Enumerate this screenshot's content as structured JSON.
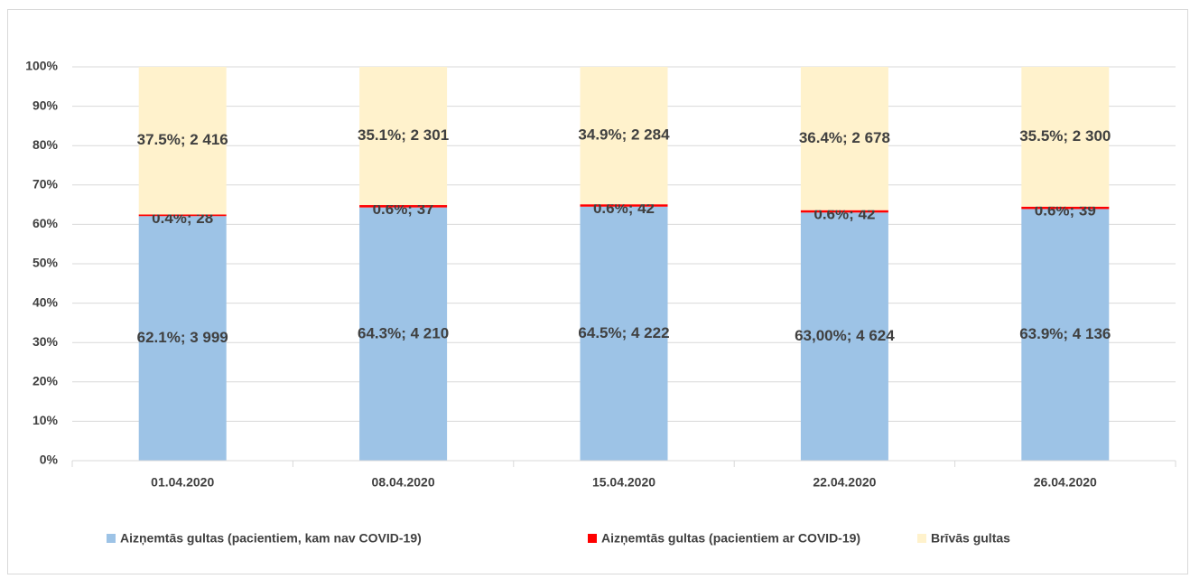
{
  "chart_data": {
    "type": "stacked_bar",
    "categories": [
      "01.04.2020",
      "08.04.2020",
      "15.04.2020",
      "22.04.2020",
      "26.04.2020"
    ],
    "series": [
      {
        "name": "Aizņemtās gultas (pacientiem, kam nav COVID-19)",
        "color": "#9dc3e6",
        "values": [
          62.1,
          64.3,
          64.5,
          63,
          63.9
        ],
        "value_labels": [
          "62.1%; 3 999",
          "64.3%; 4 210",
          "64.5%; 4 222",
          "63,00%; 4 624",
          "63.9%; 4 136"
        ]
      },
      {
        "name": "Aizņemtās gultas (pacientiem ar COVID-19)",
        "color": "#ff0000",
        "values": [
          0.4,
          0.6,
          0.6,
          0.6,
          0.6
        ],
        "value_labels": [
          "0.4%; 28",
          "0.6%; 37",
          "0.6%; 42",
          "0.6%; 42",
          "0.6%; 39"
        ]
      },
      {
        "name": "Brīvās gultas",
        "color": "#fff2cc",
        "values": [
          37.5,
          35.1,
          34.9,
          36.4,
          35.5
        ],
        "value_labels": [
          "37.5%; 2 416",
          "35.1%; 2 301",
          "34.9%; 2 284",
          "36.4%; 2 678",
          "35.5%; 2 300"
        ]
      }
    ],
    "ylim": [
      0,
      100
    ],
    "yticks": [
      {
        "value": 0,
        "label": "0%"
      },
      {
        "value": 10,
        "label": "10%"
      },
      {
        "value": 20,
        "label": "20%"
      },
      {
        "value": 30,
        "label": "30%"
      },
      {
        "value": 40,
        "label": "40%"
      },
      {
        "value": 50,
        "label": "50%"
      },
      {
        "value": 60,
        "label": "60%"
      },
      {
        "value": 70,
        "label": "70%"
      },
      {
        "value": 80,
        "label": "80%"
      },
      {
        "value": 90,
        "label": "90%"
      },
      {
        "value": 100,
        "label": "100%"
      }
    ],
    "grid": true,
    "legend": "bottom"
  }
}
